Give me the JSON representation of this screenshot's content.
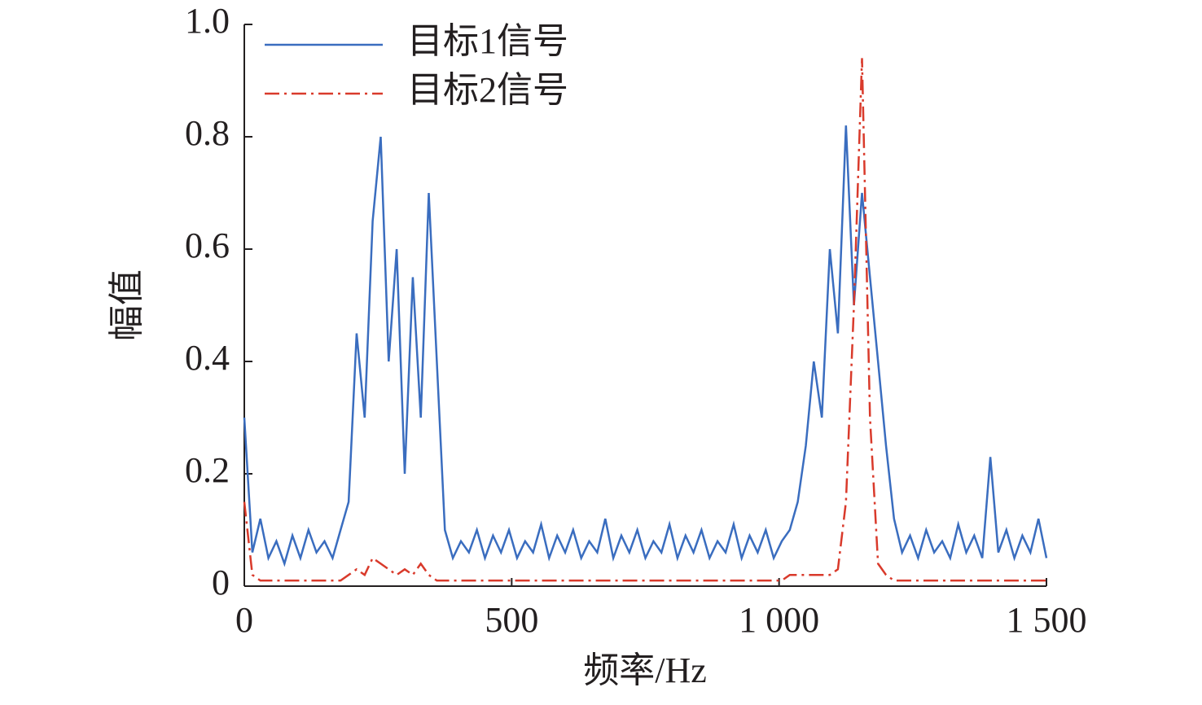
{
  "chart_data": {
    "type": "line",
    "xlabel": "频率/Hz",
    "ylabel": "幅值",
    "x": [
      0,
      15,
      30,
      45,
      60,
      75,
      90,
      105,
      120,
      135,
      150,
      165,
      180,
      195,
      210,
      225,
      240,
      255,
      270,
      285,
      300,
      315,
      330,
      345,
      360,
      375,
      390,
      405,
      420,
      435,
      450,
      465,
      480,
      495,
      510,
      525,
      540,
      555,
      570,
      585,
      600,
      615,
      630,
      645,
      660,
      675,
      690,
      705,
      720,
      735,
      750,
      765,
      780,
      795,
      810,
      825,
      840,
      855,
      870,
      885,
      900,
      915,
      930,
      945,
      960,
      975,
      990,
      1005,
      1020,
      1035,
      1050,
      1065,
      1080,
      1095,
      1110,
      1125,
      1140,
      1155,
      1170,
      1185,
      1200,
      1215,
      1230,
      1245,
      1260,
      1275,
      1290,
      1305,
      1320,
      1335,
      1350,
      1365,
      1380,
      1395,
      1410,
      1425,
      1440,
      1455,
      1470,
      1485,
      1500
    ],
    "series": [
      {
        "name": "目标1信号",
        "color": "#3a6dbf",
        "linestyle": "solid",
        "values": [
          0.3,
          0.06,
          0.12,
          0.05,
          0.08,
          0.04,
          0.09,
          0.05,
          0.1,
          0.06,
          0.08,
          0.05,
          0.1,
          0.15,
          0.45,
          0.3,
          0.65,
          0.8,
          0.4,
          0.6,
          0.2,
          0.55,
          0.3,
          0.7,
          0.4,
          0.1,
          0.05,
          0.08,
          0.06,
          0.1,
          0.05,
          0.09,
          0.06,
          0.1,
          0.05,
          0.08,
          0.06,
          0.11,
          0.05,
          0.09,
          0.06,
          0.1,
          0.05,
          0.08,
          0.06,
          0.12,
          0.05,
          0.09,
          0.06,
          0.1,
          0.05,
          0.08,
          0.06,
          0.11,
          0.05,
          0.09,
          0.06,
          0.1,
          0.05,
          0.08,
          0.06,
          0.11,
          0.05,
          0.09,
          0.06,
          0.1,
          0.05,
          0.08,
          0.1,
          0.15,
          0.25,
          0.4,
          0.3,
          0.6,
          0.45,
          0.82,
          0.5,
          0.7,
          0.55,
          0.4,
          0.25,
          0.12,
          0.06,
          0.09,
          0.05,
          0.1,
          0.06,
          0.08,
          0.05,
          0.11,
          0.06,
          0.09,
          0.05,
          0.23,
          0.06,
          0.1,
          0.05,
          0.09,
          0.06,
          0.12,
          0.05
        ]
      },
      {
        "name": "目标2信号",
        "color": "#d93a2b",
        "linestyle": "dashdot",
        "values": [
          0.15,
          0.02,
          0.01,
          0.01,
          0.01,
          0.01,
          0.01,
          0.01,
          0.01,
          0.01,
          0.01,
          0.01,
          0.01,
          0.02,
          0.03,
          0.02,
          0.05,
          0.04,
          0.03,
          0.02,
          0.03,
          0.02,
          0.04,
          0.02,
          0.01,
          0.01,
          0.01,
          0.01,
          0.01,
          0.01,
          0.01,
          0.01,
          0.01,
          0.01,
          0.01,
          0.01,
          0.01,
          0.01,
          0.01,
          0.01,
          0.01,
          0.01,
          0.01,
          0.01,
          0.01,
          0.01,
          0.01,
          0.01,
          0.01,
          0.01,
          0.01,
          0.01,
          0.01,
          0.01,
          0.01,
          0.01,
          0.01,
          0.01,
          0.01,
          0.01,
          0.01,
          0.01,
          0.01,
          0.01,
          0.01,
          0.01,
          0.01,
          0.01,
          0.02,
          0.02,
          0.02,
          0.02,
          0.02,
          0.02,
          0.03,
          0.15,
          0.5,
          0.94,
          0.3,
          0.04,
          0.02,
          0.01,
          0.01,
          0.01,
          0.01,
          0.01,
          0.01,
          0.01,
          0.01,
          0.01,
          0.01,
          0.01,
          0.01,
          0.01,
          0.01,
          0.01,
          0.01,
          0.01,
          0.01,
          0.01,
          0.01
        ]
      }
    ],
    "xlim": [
      0,
      1500
    ],
    "xticks": [
      0,
      500,
      {
        "value": 1000,
        "label": "1 000"
      },
      {
        "value": 1500,
        "label": "1 500"
      }
    ],
    "ylim": [
      0,
      1
    ],
    "yticks": [
      0,
      0.2,
      0.4,
      0.6,
      0.8,
      {
        "value": 1,
        "label": "1.0"
      }
    ],
    "legend": "upper left"
  }
}
